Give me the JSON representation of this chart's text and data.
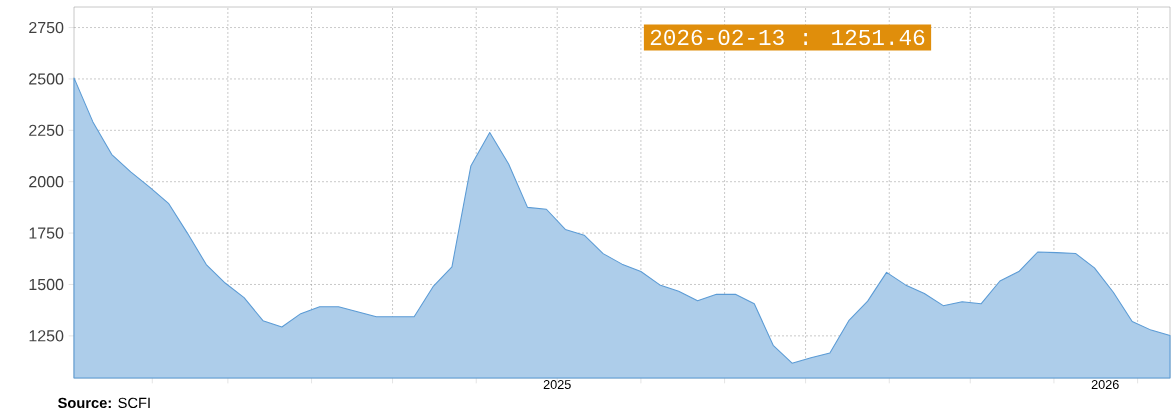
{
  "chart_data": {
    "type": "area",
    "x": [
      "2025-01-03",
      "2025-01-10",
      "2025-01-17",
      "2025-01-24",
      "2025-01-31",
      "2025-02-07",
      "2025-02-14",
      "2025-02-21",
      "2025-02-28",
      "2025-03-07",
      "2025-03-14",
      "2025-03-21",
      "2025-03-28",
      "2025-04-04",
      "2025-04-11",
      "2025-04-18",
      "2025-04-25",
      "2025-05-02",
      "2025-05-09",
      "2025-05-16",
      "2025-05-23",
      "2025-05-30",
      "2025-06-06",
      "2025-06-13",
      "2025-06-20",
      "2025-06-27",
      "2025-07-04",
      "2025-07-11",
      "2025-07-18",
      "2025-07-25",
      "2025-08-01",
      "2025-08-08",
      "2025-08-15",
      "2025-08-22",
      "2025-08-29",
      "2025-09-05",
      "2025-09-12",
      "2025-09-19",
      "2025-09-26",
      "2025-10-03",
      "2025-10-10",
      "2025-10-17",
      "2025-10-24",
      "2025-10-31",
      "2025-11-07",
      "2025-11-14",
      "2025-11-21",
      "2025-11-28",
      "2025-12-05",
      "2025-12-12",
      "2025-12-19",
      "2025-12-26",
      "2026-01-02",
      "2026-01-09",
      "2026-01-16",
      "2026-01-23",
      "2026-01-30",
      "2026-02-06",
      "2026-02-13"
    ],
    "values": [
      2505,
      2291,
      2132,
      2048,
      1974,
      1895,
      1750,
      1597,
      1507,
      1436,
      1324,
      1293,
      1358,
      1392,
      1392,
      1367,
      1343,
      1343,
      1343,
      1489,
      1586,
      2076,
      2239,
      2086,
      1875,
      1866,
      1768,
      1740,
      1650,
      1599,
      1563,
      1498,
      1467,
      1421,
      1452,
      1452,
      1406,
      1204,
      1117,
      1143,
      1167,
      1324,
      1419,
      1559,
      1498,
      1456,
      1397,
      1416,
      1406,
      1517,
      1563,
      1658,
      1655,
      1651,
      1581,
      1462,
      1320,
      1278,
      1251.46
    ],
    "color": "#5b9bd5",
    "xlim": [
      "2025-01-03",
      "2026-02-13"
    ],
    "ylim": [
      1045,
      2850
    ],
    "yticks": [
      1250,
      1500,
      1750,
      2000,
      2250,
      2500,
      2750
    ],
    "xticks": [
      {
        "value": "2025-02-01",
        "label": null
      },
      {
        "value": "2025-03-01",
        "label": null
      },
      {
        "value": "2025-04-01",
        "label": null
      },
      {
        "value": "2025-05-01",
        "label": null
      },
      {
        "value": "2025-06-01",
        "label": null
      },
      {
        "value": "2025-07-01",
        "label": null
      },
      {
        "value": "2025-08-01",
        "label": null
      },
      {
        "value": "2025-09-01",
        "label": null
      },
      {
        "value": "2025-10-01",
        "label": null
      },
      {
        "value": "2025-11-01",
        "label": null
      },
      {
        "value": "2025-12-01",
        "label": null
      },
      {
        "value": "2026-01-01",
        "label": null
      },
      {
        "value": "2026-02-01",
        "label": null
      },
      {
        "value": "2025-07-01",
        "label": "2025"
      },
      {
        "value": "2026-01-20",
        "label": "2026"
      }
    ],
    "grid": true,
    "annotations": [
      "2026-02-13 : 1251.46",
      "**Source:** SCFI"
    ]
  }
}
